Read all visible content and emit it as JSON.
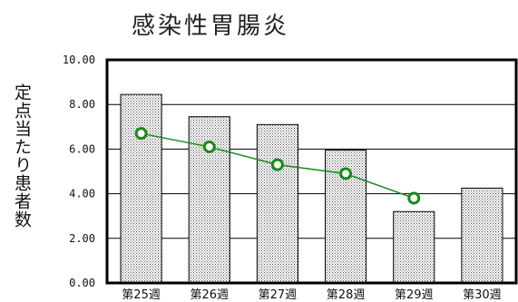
{
  "chart_data": {
    "type": "bar",
    "title": "感染性胃腸炎",
    "ylabel": "定点当たり患者数",
    "xlabel": "",
    "categories": [
      "第25週",
      "第26週",
      "第27週",
      "第28週",
      "第29週",
      "第30週"
    ],
    "series": [
      {
        "type": "bar",
        "values": [
          8.45,
          7.45,
          7.1,
          5.95,
          3.2,
          4.25
        ]
      },
      {
        "type": "line",
        "values": [
          6.7,
          6.1,
          5.3,
          4.9,
          3.8,
          null
        ]
      }
    ],
    "ylim": [
      0,
      10
    ],
    "yticks": [
      "0.00",
      "2.00",
      "4.00",
      "6.00",
      "8.00",
      "10.00"
    ],
    "grid": true,
    "colors": {
      "line": "#1a8a1a",
      "marker_fill": "#ffffff",
      "bar_fill": "#d9d9d9",
      "axis": "#000000"
    }
  }
}
